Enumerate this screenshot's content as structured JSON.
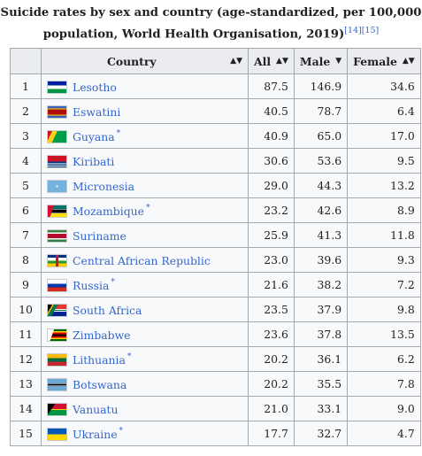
{
  "caption": {
    "text": "Suicide rates by sex and country (age-standardized, per 100,000 population, World Health Organisation, 2019)",
    "refs": "[14][15]"
  },
  "table": {
    "headers": {
      "rank": "",
      "country": "Country",
      "all": "All",
      "male": "Male",
      "female": "Female"
    },
    "rows": [
      {
        "rank": "1",
        "country": "Lesotho",
        "star": "",
        "all": "87.5",
        "male": "146.9",
        "female": "34.6",
        "flag": "lesotho-flag-icon"
      },
      {
        "rank": "2",
        "country": "Eswatini",
        "star": "",
        "all": "40.5",
        "male": "78.7",
        "female": "6.4",
        "flag": "eswatini-flag-icon"
      },
      {
        "rank": "3",
        "country": "Guyana",
        "star": "*",
        "all": "40.9",
        "male": "65.0",
        "female": "17.0",
        "flag": "guyana-flag-icon"
      },
      {
        "rank": "4",
        "country": "Kiribati",
        "star": "",
        "all": "30.6",
        "male": "53.6",
        "female": "9.5",
        "flag": "kiribati-flag-icon"
      },
      {
        "rank": "5",
        "country": "Micronesia",
        "star": "",
        "all": "29.0",
        "male": "44.3",
        "female": "13.2",
        "flag": "micronesia-flag-icon"
      },
      {
        "rank": "6",
        "country": "Mozambique",
        "star": "*",
        "all": "23.2",
        "male": "42.6",
        "female": "8.9",
        "flag": "mozambique-flag-icon"
      },
      {
        "rank": "7",
        "country": "Suriname",
        "star": "",
        "all": "25.9",
        "male": "41.3",
        "female": "11.8",
        "flag": "suriname-flag-icon"
      },
      {
        "rank": "8",
        "country": "Central African Republic",
        "star": "",
        "all": "23.0",
        "male": "39.6",
        "female": "9.3",
        "flag": "central-african-republic-flag-icon"
      },
      {
        "rank": "9",
        "country": "Russia",
        "star": "*",
        "all": "21.6",
        "male": "38.2",
        "female": "7.2",
        "flag": "russia-flag-icon"
      },
      {
        "rank": "10",
        "country": "South Africa",
        "star": "",
        "all": "23.5",
        "male": "37.9",
        "female": "9.8",
        "flag": "south-africa-flag-icon"
      },
      {
        "rank": "11",
        "country": "Zimbabwe",
        "star": "",
        "all": "23.6",
        "male": "37.8",
        "female": "13.5",
        "flag": "zimbabwe-flag-icon"
      },
      {
        "rank": "12",
        "country": "Lithuania",
        "star": "*",
        "all": "20.2",
        "male": "36.1",
        "female": "6.2",
        "flag": "lithuania-flag-icon"
      },
      {
        "rank": "13",
        "country": "Botswana",
        "star": "",
        "all": "20.2",
        "male": "35.5",
        "female": "7.8",
        "flag": "botswana-flag-icon"
      },
      {
        "rank": "14",
        "country": "Vanuatu",
        "star": "",
        "all": "21.0",
        "male": "33.1",
        "female": "9.0",
        "flag": "vanuatu-flag-icon"
      },
      {
        "rank": "15",
        "country": "Ukraine",
        "star": "*",
        "all": "17.7",
        "male": "32.7",
        "female": "4.7",
        "flag": "ukraine-flag-icon"
      }
    ]
  },
  "colors": {
    "link": "#3366cc",
    "header_bg": "#eaecf0",
    "cell_bg": "#f8f9fa",
    "border": "#a2a9b1"
  }
}
